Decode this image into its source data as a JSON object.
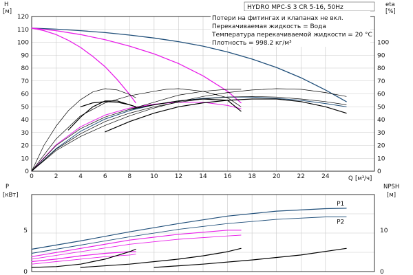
{
  "chart_data": [
    {
      "type": "line",
      "title": "HYDRO MPC-S 3 CR 5-16, 50Hz",
      "notes": [
        "Потери на фитингах и клапанах не вкл.",
        "Перекачиваемая жидкость = Вода",
        "Температура перекачиваемой жидкости = 20 °C",
        "Плотность = 998.2 кг/м³"
      ],
      "y_left": {
        "name": "H",
        "unit": "[м]",
        "min": 0,
        "max": 120,
        "ticks": [
          0,
          10,
          20,
          30,
          40,
          50,
          60,
          70,
          80,
          90,
          100,
          110,
          120
        ]
      },
      "y_right": {
        "name": "eta",
        "unit": "[%]",
        "min": 0,
        "max": 120,
        "ticks": [
          0,
          10,
          20,
          30,
          40,
          50,
          60,
          70,
          80,
          90,
          100
        ]
      },
      "x": {
        "name": "Q",
        "unit": "[м³/ч]",
        "min": 0,
        "max": 28,
        "ticks": [
          0,
          2,
          4,
          6,
          8,
          10,
          12,
          14,
          16,
          18,
          20,
          22,
          24
        ]
      },
      "series": [
        {
          "color": "#1f4e79",
          "width": 1.3,
          "points": [
            [
              0,
              111
            ],
            [
              2,
              110.2
            ],
            [
              4,
              109
            ],
            [
              6,
              107.5
            ],
            [
              8,
              105.6
            ],
            [
              10,
              103.3
            ],
            [
              12,
              100.5
            ],
            [
              14,
              97
            ],
            [
              16,
              92.5
            ],
            [
              18,
              87
            ],
            [
              20,
              80.5
            ],
            [
              22,
              72.5
            ],
            [
              24,
              63
            ],
            [
              25.7,
              54
            ]
          ]
        },
        {
          "color": "#e81ee8",
          "width": 1.3,
          "points": [
            [
              0,
              111
            ],
            [
              2,
              109
            ],
            [
              4,
              106
            ],
            [
              6,
              102
            ],
            [
              8,
              97
            ],
            [
              10,
              91
            ],
            [
              12,
              83.5
            ],
            [
              14,
              74
            ],
            [
              16,
              62
            ],
            [
              17.1,
              53
            ]
          ]
        },
        {
          "color": "#e81ee8",
          "width": 1.3,
          "points": [
            [
              0,
              111
            ],
            [
              1,
              109
            ],
            [
              2,
              106
            ],
            [
              3,
              101.5
            ],
            [
              4,
              96
            ],
            [
              5,
              89
            ],
            [
              6,
              81
            ],
            [
              7,
              71
            ],
            [
              8,
              59.5
            ],
            [
              8.5,
              53
            ]
          ]
        },
        {
          "color": "#1f4e79",
          "width": 1.0,
          "points": [
            [
              0,
              0
            ],
            [
              2,
              17.5
            ],
            [
              4,
              31
            ],
            [
              6,
              40.5
            ],
            [
              8,
              47
            ],
            [
              10,
              51.5
            ],
            [
              12,
              54.5
            ],
            [
              14,
              56.5
            ],
            [
              16,
              57.5
            ],
            [
              18,
              57.5
            ],
            [
              20,
              56.5
            ],
            [
              22,
              55
            ],
            [
              24,
              52.5
            ],
            [
              25.7,
              50
            ]
          ]
        },
        {
          "color": "#e81ee8",
          "width": 1.0,
          "points": [
            [
              0,
              0
            ],
            [
              2,
              20.5
            ],
            [
              4,
              34.5
            ],
            [
              6,
              43.5
            ],
            [
              8,
              49
            ],
            [
              10,
              52
            ],
            [
              12,
              53.5
            ],
            [
              14,
              53.5
            ],
            [
              16,
              51
            ],
            [
              17.1,
              48.5
            ]
          ]
        },
        {
          "color": "#000000",
          "width": 1.2,
          "points": [
            [
              4,
              50
            ],
            [
              5,
              53
            ],
            [
              6,
              54
            ],
            [
              7,
              53.5
            ],
            [
              8,
              51.5
            ],
            [
              8.5,
              50
            ]
          ]
        },
        {
          "color": "#000000",
          "width": 0.7,
          "points": [
            [
              0,
              0
            ],
            [
              1,
              20
            ],
            [
              2,
              35
            ],
            [
              3,
              47
            ],
            [
              4,
              55.5
            ],
            [
              5,
              61.5
            ],
            [
              6,
              64
            ],
            [
              7,
              63
            ],
            [
              8,
              59.5
            ],
            [
              8.5,
              57
            ]
          ]
        },
        {
          "color": "#000000",
          "width": 1.2,
          "points": [
            [
              3,
              32
            ],
            [
              4,
              42
            ],
            [
              5,
              50
            ],
            [
              6,
              54.5
            ],
            [
              7,
              54.5
            ],
            [
              8,
              51.5
            ],
            [
              8.5,
              50
            ]
          ]
        },
        {
          "color": "#000000",
          "width": 1.2,
          "points": [
            [
              8,
              48
            ],
            [
              10,
              51.5
            ],
            [
              12,
              54.5
            ],
            [
              14,
              56
            ],
            [
              16,
              55
            ],
            [
              17.1,
              46.5
            ]
          ]
        },
        {
          "color": "#000000",
          "width": 0.7,
          "points": [
            [
              0,
              0
            ],
            [
              2,
              20
            ],
            [
              4,
              33
            ],
            [
              6,
              42
            ],
            [
              8,
              48
            ],
            [
              10,
              53.5
            ],
            [
              12,
              59
            ],
            [
              14,
              62
            ],
            [
              16,
              63.5
            ],
            [
              17.1,
              63.5
            ]
          ]
        },
        {
          "color": "#000000",
          "width": 0.7,
          "points": [
            [
              0,
              0
            ],
            [
              2,
              25
            ],
            [
              4,
              43
            ],
            [
              6,
              53
            ],
            [
              8,
              58.5
            ],
            [
              10,
              62
            ],
            [
              11,
              63.5
            ],
            [
              12,
              64
            ],
            [
              14,
              62
            ],
            [
              16,
              57
            ],
            [
              17.1,
              50
            ]
          ]
        },
        {
          "color": "#000000",
          "width": 1.2,
          "points": [
            [
              6,
              30.5
            ],
            [
              8,
              38.5
            ],
            [
              10,
              45
            ],
            [
              12,
              50
            ],
            [
              14,
              53
            ],
            [
              16,
              55
            ],
            [
              18,
              56
            ],
            [
              20,
              56
            ],
            [
              22,
              54
            ],
            [
              24,
              50
            ],
            [
              25.7,
              45
            ]
          ]
        },
        {
          "color": "#000000",
          "width": 0.7,
          "points": [
            [
              0,
              0
            ],
            [
              2,
              17
            ],
            [
              4,
              29
            ],
            [
              6,
              38.5
            ],
            [
              8,
              45
            ],
            [
              10,
              50
            ],
            [
              12,
              53.5
            ],
            [
              14,
              56
            ],
            [
              16,
              57.5
            ],
            [
              18,
              58
            ],
            [
              20,
              57.5
            ],
            [
              22,
              56
            ],
            [
              24,
              54
            ],
            [
              25.7,
              51.5
            ]
          ]
        },
        {
          "color": "#000000",
          "width": 0.7,
          "points": [
            [
              0,
              0
            ],
            [
              2,
              16
            ],
            [
              4,
              27
            ],
            [
              6,
              35.5
            ],
            [
              8,
              43
            ],
            [
              10,
              49
            ],
            [
              12,
              54
            ],
            [
              14,
              58
            ],
            [
              16,
              61
            ],
            [
              18,
              63
            ],
            [
              20,
              64
            ],
            [
              22,
              63.5
            ],
            [
              24,
              61
            ],
            [
              25.7,
              58
            ]
          ]
        }
      ]
    },
    {
      "type": "line",
      "y_left": {
        "name": "P",
        "unit": "[кВт]",
        "min": 0,
        "max": 9.3,
        "ticks": [
          0,
          5
        ]
      },
      "y_right": {
        "name": "NPSH",
        "unit": "[м]",
        "min": 0,
        "max": 18.6,
        "ticks": [
          0,
          10
        ]
      },
      "x": {
        "min": 0,
        "max": 28
      },
      "series": [
        {
          "name": "P1",
          "color": "#1f4e79",
          "width": 1.2,
          "points": [
            [
              0,
              2.7
            ],
            [
              4,
              3.7
            ],
            [
              8,
              4.8
            ],
            [
              12,
              5.8
            ],
            [
              16,
              6.7
            ],
            [
              20,
              7.3
            ],
            [
              24,
              7.6
            ],
            [
              25.7,
              7.65
            ]
          ]
        },
        {
          "name": "P2",
          "color": "#1f4e79",
          "width": 0.9,
          "points": [
            [
              0,
              2.2
            ],
            [
              4,
              3.2
            ],
            [
              8,
              4.2
            ],
            [
              12,
              5.1
            ],
            [
              16,
              5.8
            ],
            [
              20,
              6.3
            ],
            [
              24,
              6.6
            ],
            [
              25.7,
              6.6
            ]
          ]
        },
        {
          "color": "#e81ee8",
          "width": 1.2,
          "points": [
            [
              0,
              1.8
            ],
            [
              4,
              2.8
            ],
            [
              8,
              3.8
            ],
            [
              12,
              4.5
            ],
            [
              16,
              5
            ],
            [
              17.1,
              5
            ]
          ]
        },
        {
          "color": "#e81ee8",
          "width": 0.9,
          "points": [
            [
              0,
              1.5
            ],
            [
              4,
              2.4
            ],
            [
              8,
              3.3
            ],
            [
              12,
              3.9
            ],
            [
              16,
              4.3
            ],
            [
              17.1,
              4.4
            ]
          ]
        },
        {
          "color": "#e81ee8",
          "width": 1.2,
          "points": [
            [
              0,
              1.2
            ],
            [
              2,
              1.5
            ],
            [
              4,
              1.9
            ],
            [
              6,
              2.2
            ],
            [
              8,
              2.4
            ],
            [
              8.5,
              2.4
            ]
          ]
        },
        {
          "color": "#e81ee8",
          "width": 0.9,
          "points": [
            [
              0,
              0.9
            ],
            [
              2,
              1.2
            ],
            [
              4,
              1.5
            ],
            [
              6,
              1.8
            ],
            [
              8,
              2
            ],
            [
              8.5,
              2.1
            ]
          ]
        },
        {
          "color": "#000000",
          "width": 1.2,
          "points": [
            [
              0,
              0.5
            ],
            [
              2,
              0.6
            ],
            [
              4,
              0.9
            ],
            [
              6,
              1.5
            ],
            [
              8,
              2.4
            ],
            [
              8.5,
              2.7
            ]
          ]
        },
        {
          "color": "#000000",
          "width": 1.2,
          "points": [
            [
              4,
              0.5
            ],
            [
              8,
              0.9
            ],
            [
              12,
              1.5
            ],
            [
              14,
              1.9
            ],
            [
              16,
              2.4
            ],
            [
              17.1,
              2.8
            ]
          ]
        },
        {
          "color": "#000000",
          "width": 1.2,
          "points": [
            [
              10,
              0.5
            ],
            [
              14,
              0.9
            ],
            [
              18,
              1.4
            ],
            [
              22,
              2
            ],
            [
              25.7,
              2.8
            ]
          ]
        }
      ]
    }
  ]
}
